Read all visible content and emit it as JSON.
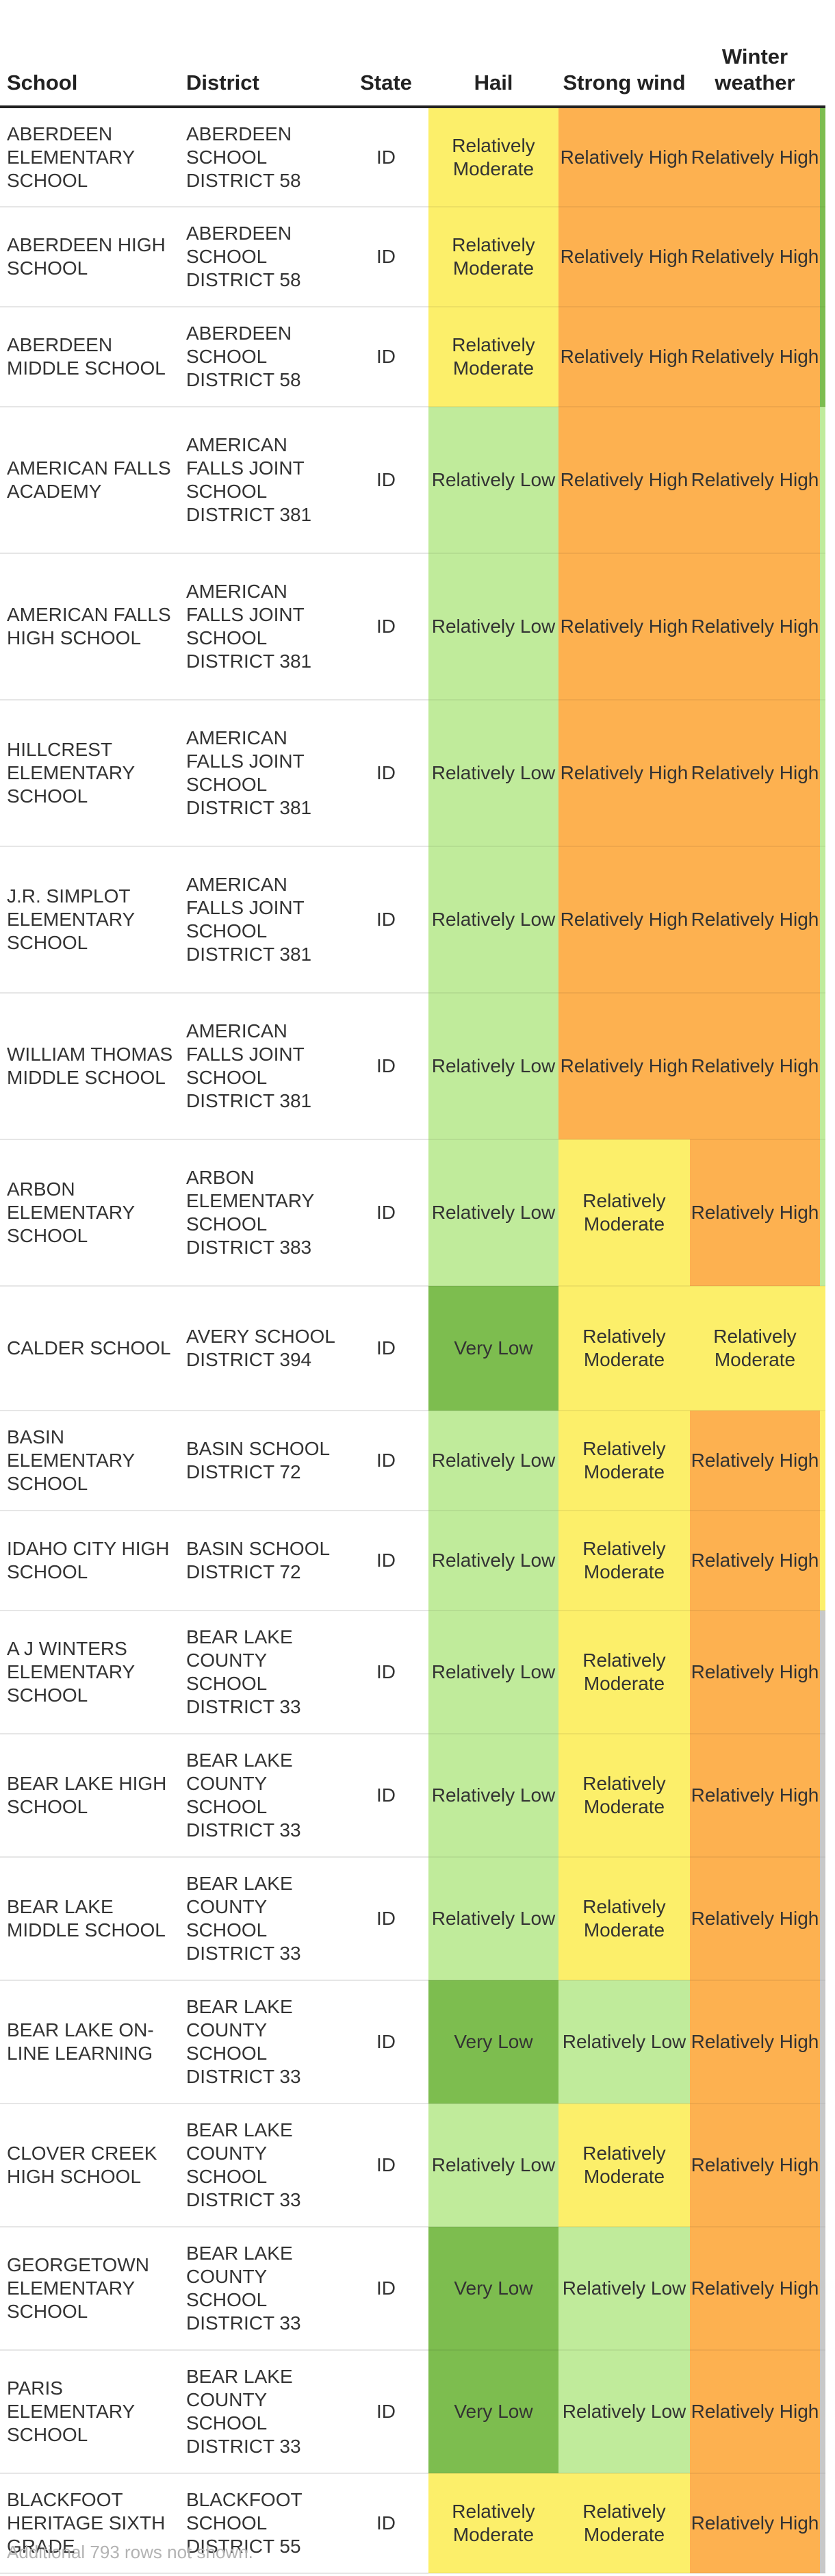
{
  "columns": {
    "school": "School",
    "district": "District",
    "state": "State",
    "hail": "Hail",
    "wind": "Strong wind",
    "winter": "Winter weather"
  },
  "risk_colors": {
    "Very Low": "#7dbd4f",
    "Relatively Low": "#c0eb9b",
    "Relatively Moderate": "#fcef6a",
    "Relatively High": "#fdb150"
  },
  "edge_colors": [
    "#7dbd4f",
    "#7dbd4f",
    "#7dbd4f",
    "#c0eb9b",
    "#c0eb9b",
    "#c0eb9b",
    "#c0eb9b",
    "#c0eb9b",
    "#c0eb9b",
    "#fcef6a",
    "#fcef6a",
    "#fcef6a",
    "#c8c8c8",
    "#c8c8c8",
    "#c8c8c8",
    "#c8c8c8",
    "#c8c8c8",
    "#c8c8c8",
    "#c8c8c8",
    "#c8c8c8"
  ],
  "rows": [
    {
      "school": "ABERDEEN ELEMENTARY SCHOOL",
      "district": "ABERDEEN SCHOOL DISTRICT 58",
      "state": "ID",
      "hail": "Relatively Moderate",
      "wind": "Relatively High",
      "winter": "Relatively High"
    },
    {
      "school": "ABERDEEN HIGH SCHOOL",
      "district": "ABERDEEN SCHOOL DISTRICT 58",
      "state": "ID",
      "hail": "Relatively Moderate",
      "wind": "Relatively High",
      "winter": "Relatively High"
    },
    {
      "school": "ABERDEEN MIDDLE SCHOOL",
      "district": "ABERDEEN SCHOOL DISTRICT 58",
      "state": "ID",
      "hail": "Relatively Moderate",
      "wind": "Relatively High",
      "winter": "Relatively High"
    },
    {
      "school": "AMERICAN FALLS ACADEMY",
      "district": "AMERICAN FALLS JOINT SCHOOL DISTRICT 381",
      "state": "ID",
      "hail": "Relatively Low",
      "wind": "Relatively High",
      "winter": "Relatively High"
    },
    {
      "school": "AMERICAN FALLS HIGH SCHOOL",
      "district": "AMERICAN FALLS JOINT SCHOOL DISTRICT 381",
      "state": "ID",
      "hail": "Relatively Low",
      "wind": "Relatively High",
      "winter": "Relatively High"
    },
    {
      "school": "HILLCREST ELEMENTARY SCHOOL",
      "district": "AMERICAN FALLS JOINT SCHOOL DISTRICT 381",
      "state": "ID",
      "hail": "Relatively Low",
      "wind": "Relatively High",
      "winter": "Relatively High"
    },
    {
      "school": "J.R. SIMPLOT ELEMENTARY SCHOOL",
      "district": "AMERICAN FALLS JOINT SCHOOL DISTRICT 381",
      "state": "ID",
      "hail": "Relatively Low",
      "wind": "Relatively High",
      "winter": "Relatively High"
    },
    {
      "school": "WILLIAM THOMAS MIDDLE SCHOOL",
      "district": "AMERICAN FALLS JOINT SCHOOL DISTRICT 381",
      "state": "ID",
      "hail": "Relatively Low",
      "wind": "Relatively High",
      "winter": "Relatively High"
    },
    {
      "school": "ARBON ELEMENTARY SCHOOL",
      "district": "ARBON ELEMENTARY SCHOOL DISTRICT 383",
      "state": "ID",
      "hail": "Relatively Low",
      "wind": "Relatively Moderate",
      "winter": "Relatively High"
    },
    {
      "school": "CALDER SCHOOL",
      "district": "AVERY SCHOOL DISTRICT 394",
      "state": "ID",
      "hail": "Very Low",
      "wind": "Relatively Moderate",
      "winter": "Relatively Moderate"
    },
    {
      "school": "BASIN ELEMENTARY SCHOOL",
      "district": "BASIN SCHOOL DISTRICT 72",
      "state": "ID",
      "hail": "Relatively Low",
      "wind": "Relatively Moderate",
      "winter": "Relatively High"
    },
    {
      "school": "IDAHO CITY HIGH SCHOOL",
      "district": "BASIN SCHOOL DISTRICT 72",
      "state": "ID",
      "hail": "Relatively Low",
      "wind": "Relatively Moderate",
      "winter": "Relatively High"
    },
    {
      "school": "A J WINTERS ELEMENTARY SCHOOL",
      "district": "BEAR LAKE COUNTY SCHOOL DISTRICT 33",
      "state": "ID",
      "hail": "Relatively Low",
      "wind": "Relatively Moderate",
      "winter": "Relatively High"
    },
    {
      "school": "BEAR LAKE HIGH SCHOOL",
      "district": "BEAR LAKE COUNTY SCHOOL DISTRICT 33",
      "state": "ID",
      "hail": "Relatively Low",
      "wind": "Relatively Moderate",
      "winter": "Relatively High"
    },
    {
      "school": "BEAR LAKE MIDDLE SCHOOL",
      "district": "BEAR LAKE COUNTY SCHOOL DISTRICT 33",
      "state": "ID",
      "hail": "Relatively Low",
      "wind": "Relatively Moderate",
      "winter": "Relatively High"
    },
    {
      "school": "BEAR LAKE ON-LINE LEARNING",
      "district": "BEAR LAKE COUNTY SCHOOL DISTRICT 33",
      "state": "ID",
      "hail": "Very Low",
      "wind": "Relatively Low",
      "winter": "Relatively High"
    },
    {
      "school": "CLOVER CREEK HIGH SCHOOL",
      "district": "BEAR LAKE COUNTY SCHOOL DISTRICT 33",
      "state": "ID",
      "hail": "Relatively Low",
      "wind": "Relatively Moderate",
      "winter": "Relatively High"
    },
    {
      "school": "GEORGETOWN ELEMENTARY SCHOOL",
      "district": "BEAR LAKE COUNTY SCHOOL DISTRICT 33",
      "state": "ID",
      "hail": "Very Low",
      "wind": "Relatively Low",
      "winter": "Relatively High"
    },
    {
      "school": "PARIS ELEMENTARY SCHOOL",
      "district": "BEAR LAKE COUNTY SCHOOL DISTRICT 33",
      "state": "ID",
      "hail": "Very Low",
      "wind": "Relatively Low",
      "winter": "Relatively High"
    },
    {
      "school": "BLACKFOOT HERITAGE SIXTH GRADE",
      "district": "BLACKFOOT SCHOOL DISTRICT 55",
      "state": "ID",
      "hail": "Relatively Moderate",
      "wind": "Relatively Moderate",
      "winter": "Relatively High"
    }
  ],
  "footer": "Additional 793 rows not shown."
}
